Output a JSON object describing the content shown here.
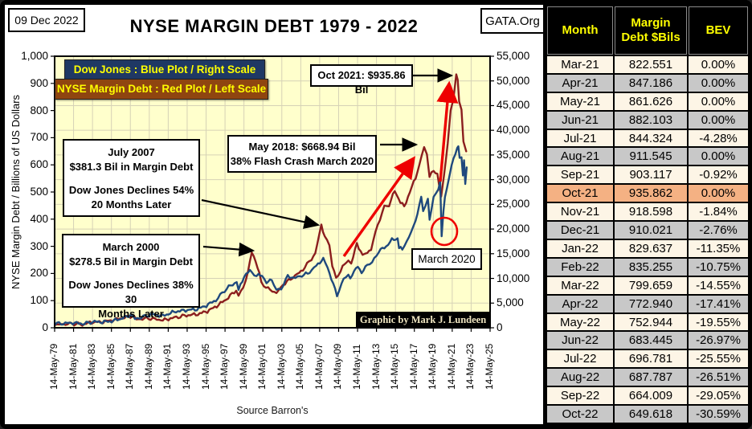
{
  "header": {
    "date": "09 Dec 2022",
    "org": "GATA.Org",
    "title": "NYSE MARGIN DEBT 1979 - 2022"
  },
  "footer": {
    "source": "Source Barron's",
    "credit": "Graphic by Mark J. Lundeen"
  },
  "legend": [
    {
      "label": "Dow Jones : Blue Plot / Right Scale",
      "bg": "#1F3864",
      "fg": "#FFFF00"
    },
    {
      "label": "NYSE Margin Debt : Red Plot / Left Scale",
      "bg": "#8F4510",
      "fg": "#FFFF00"
    }
  ],
  "annotations": {
    "oct2021": {
      "lines": [
        "Oct 2021: $935.86 Bil"
      ]
    },
    "may2018": {
      "lines": [
        "May 2018: $668.94 Bil",
        "38% Flash Crash March 2020"
      ]
    },
    "july2007": {
      "lines": [
        "July 2007",
        "$381.3 Bil in Margin Debt",
        "",
        "Dow Jones Declines 54%",
        "20 Months Later"
      ]
    },
    "march2000": {
      "lines": [
        "March 2000",
        "$278.5 Bil in Margin Debt",
        "",
        "Dow Jones Declines 38% 30",
        "Months Later"
      ]
    },
    "march2020": {
      "lines": [
        "March 2020"
      ]
    }
  },
  "chart_data": {
    "type": "line",
    "title": "NYSE MARGIN DEBT 1979 - 2022",
    "x_domain_years": [
      1979.37,
      2025.37
    ],
    "x_tick_labels": [
      "14-May-79",
      "14-May-81",
      "14-May-83",
      "14-May-85",
      "14-May-87",
      "14-May-89",
      "14-May-91",
      "14-May-93",
      "14-May-95",
      "14-May-97",
      "14-May-99",
      "14-May-01",
      "14-May-03",
      "14-May-05",
      "14-May-07",
      "14-May-09",
      "14-May-11",
      "14-May-13",
      "14-May-15",
      "14-May-17",
      "14-May-19",
      "14-May-21",
      "14-May-23",
      "14-May-25"
    ],
    "y_left": {
      "label": "NYSE Margin Debt  /  Billions of US Dollars",
      "range": [
        0,
        1000
      ],
      "tick_labels": [
        "1,000",
        "900",
        "800",
        "700",
        "600",
        "500",
        "400",
        "300",
        "200",
        "100",
        "0"
      ]
    },
    "y_right": {
      "label": "Dow Jones",
      "range": [
        0,
        55000
      ],
      "tick_labels": [
        "55,000",
        "50,000",
        "45,000",
        "40,000",
        "35,000",
        "30,000",
        "25,000",
        "20,000",
        "15,000",
        "10,000",
        "5,000",
        "0"
      ]
    },
    "grid": true,
    "plot_bg": "#FFFFCC",
    "grid_color": "#D6D2B6",
    "arrow_color": "#EE0000",
    "series": [
      {
        "name": "NYSE Margin Debt",
        "axis": "left",
        "color": "#8B1E1E",
        "points": [
          [
            1979.4,
            11
          ],
          [
            1980.3,
            13
          ],
          [
            1981.2,
            15
          ],
          [
            1982.3,
            12
          ],
          [
            1983.3,
            21
          ],
          [
            1984.3,
            21
          ],
          [
            1985.3,
            27
          ],
          [
            1986.3,
            34
          ],
          [
            1987.6,
            44
          ],
          [
            1988.0,
            31
          ],
          [
            1989.3,
            35
          ],
          [
            1990.8,
            28
          ],
          [
            1992.0,
            37
          ],
          [
            1993.3,
            46
          ],
          [
            1994.5,
            50
          ],
          [
            1995.5,
            61
          ],
          [
            1996.5,
            80
          ],
          [
            1997.5,
            105
          ],
          [
            1998.55,
            138
          ],
          [
            1998.8,
            114
          ],
          [
            1999.3,
            152
          ],
          [
            1999.8,
            205
          ],
          [
            2000.2,
            278.5
          ],
          [
            2000.6,
            248
          ],
          [
            2001.2,
            170
          ],
          [
            2001.7,
            148
          ],
          [
            2002.8,
            128
          ],
          [
            2003.5,
            158
          ],
          [
            2004.3,
            180
          ],
          [
            2005.0,
            196
          ],
          [
            2005.8,
            222
          ],
          [
            2006.5,
            255
          ],
          [
            2006.9,
            272
          ],
          [
            2007.55,
            381.3
          ],
          [
            2007.9,
            332
          ],
          [
            2008.4,
            308
          ],
          [
            2008.7,
            232
          ],
          [
            2009.1,
            180
          ],
          [
            2009.8,
            226
          ],
          [
            2010.4,
            246
          ],
          [
            2010.7,
            236
          ],
          [
            2011.3,
            310
          ],
          [
            2011.9,
            268
          ],
          [
            2012.4,
            278
          ],
          [
            2012.8,
            290
          ],
          [
            2013.5,
            380
          ],
          [
            2014.2,
            444
          ],
          [
            2014.7,
            452
          ],
          [
            2015.3,
            505
          ],
          [
            2015.9,
            462
          ],
          [
            2016.3,
            446
          ],
          [
            2016.9,
            500
          ],
          [
            2017.5,
            554
          ],
          [
            2017.9,
            598
          ],
          [
            2018.4,
            668.9
          ],
          [
            2018.7,
            644
          ],
          [
            2018.97,
            554
          ],
          [
            2019.4,
            580
          ],
          [
            2019.8,
            566
          ],
          [
            2020.2,
            479
          ],
          [
            2020.5,
            560
          ],
          [
            2020.9,
            682
          ],
          [
            2021.2,
            800
          ],
          [
            2021.5,
            846
          ],
          [
            2021.8,
            935.9
          ],
          [
            2021.95,
            912
          ],
          [
            2022.1,
            830
          ],
          [
            2022.35,
            799
          ],
          [
            2022.55,
            690
          ],
          [
            2022.85,
            649.6
          ]
        ]
      },
      {
        "name": "Dow Jones",
        "axis": "right",
        "color": "#1F497D",
        "points": [
          [
            1979.4,
            840
          ],
          [
            1980.5,
            900
          ],
          [
            1981.3,
            1000
          ],
          [
            1982.5,
            800
          ],
          [
            1983.4,
            1230
          ],
          [
            1984.4,
            1150
          ],
          [
            1985.4,
            1350
          ],
          [
            1986.4,
            1850
          ],
          [
            1987.6,
            2700
          ],
          [
            1987.85,
            1770
          ],
          [
            1988.5,
            2100
          ],
          [
            1989.6,
            2750
          ],
          [
            1990.8,
            2400
          ],
          [
            1992.0,
            3250
          ],
          [
            1993.4,
            3600
          ],
          [
            1994.4,
            3750
          ],
          [
            1995.4,
            4500
          ],
          [
            1996.4,
            5600
          ],
          [
            1997.55,
            8000
          ],
          [
            1998.6,
            9300
          ],
          [
            1998.8,
            7600
          ],
          [
            1999.4,
            10500
          ],
          [
            2000.0,
            11500
          ],
          [
            2000.7,
            10500
          ],
          [
            2001.3,
            10700
          ],
          [
            2001.75,
            8900
          ],
          [
            2002.3,
            10000
          ],
          [
            2002.8,
            7400
          ],
          [
            2003.3,
            8000
          ],
          [
            2004.0,
            10400
          ],
          [
            2004.8,
            10100
          ],
          [
            2005.5,
            10550
          ],
          [
            2006.3,
            11200
          ],
          [
            2007.0,
            12600
          ],
          [
            2007.75,
            13950
          ],
          [
            2008.2,
            12300
          ],
          [
            2008.8,
            8800
          ],
          [
            2009.2,
            6600
          ],
          [
            2009.9,
            9800
          ],
          [
            2010.4,
            11000
          ],
          [
            2010.6,
            9900
          ],
          [
            2011.4,
            12700
          ],
          [
            2011.8,
            10900
          ],
          [
            2012.4,
            13000
          ],
          [
            2012.9,
            13100
          ],
          [
            2013.6,
            15500
          ],
          [
            2014.4,
            16500
          ],
          [
            2015.0,
            17800
          ],
          [
            2015.6,
            18100
          ],
          [
            2015.75,
            16200
          ],
          [
            2016.1,
            15900
          ],
          [
            2016.8,
            18300
          ],
          [
            2017.5,
            21700
          ],
          [
            2018.1,
            26300
          ],
          [
            2018.3,
            23900
          ],
          [
            2018.8,
            25900
          ],
          [
            2018.98,
            21800
          ],
          [
            2019.4,
            26500
          ],
          [
            2019.9,
            28000
          ],
          [
            2020.1,
            29400
          ],
          [
            2020.25,
            18600
          ],
          [
            2020.45,
            24000
          ],
          [
            2020.6,
            26500
          ],
          [
            2020.8,
            28300
          ],
          [
            2021.1,
            31000
          ],
          [
            2021.5,
            34500
          ],
          [
            2021.9,
            36100
          ],
          [
            2022.02,
            36700
          ],
          [
            2022.15,
            34300
          ],
          [
            2022.35,
            34800
          ],
          [
            2022.5,
            30900
          ],
          [
            2022.62,
            34100
          ],
          [
            2022.75,
            29200
          ],
          [
            2022.9,
            32500
          ]
        ]
      }
    ]
  },
  "table": {
    "columns": [
      [
        "Month"
      ],
      [
        "Margin",
        "Debt $Bils"
      ],
      [
        "BEV"
      ]
    ],
    "highlight_month": "Oct-21",
    "highlight_color": "#F4B183",
    "rows": [
      [
        "Mar-21",
        "822.551",
        "0.00%"
      ],
      [
        "Apr-21",
        "847.186",
        "0.00%"
      ],
      [
        "May-21",
        "861.626",
        "0.00%"
      ],
      [
        "Jun-21",
        "882.103",
        "0.00%"
      ],
      [
        "Jul-21",
        "844.324",
        "-4.28%"
      ],
      [
        "Aug-21",
        "911.545",
        "0.00%"
      ],
      [
        "Sep-21",
        "903.117",
        "-0.92%"
      ],
      [
        "Oct-21",
        "935.862",
        "0.00%"
      ],
      [
        "Nov-21",
        "918.598",
        "-1.84%"
      ],
      [
        "Dec-21",
        "910.021",
        "-2.76%"
      ],
      [
        "Jan-22",
        "829.637",
        "-11.35%"
      ],
      [
        "Feb-22",
        "835.255",
        "-10.75%"
      ],
      [
        "Mar-22",
        "799.659",
        "-14.55%"
      ],
      [
        "Apr-22",
        "772.940",
        "-17.41%"
      ],
      [
        "May-22",
        "752.944",
        "-19.55%"
      ],
      [
        "Jun-22",
        "683.445",
        "-26.97%"
      ],
      [
        "Jul-22",
        "696.781",
        "-25.55%"
      ],
      [
        "Aug-22",
        "687.787",
        "-26.51%"
      ],
      [
        "Sep-22",
        "664.009",
        "-29.05%"
      ],
      [
        "Oct-22",
        "649.618",
        "-30.59%"
      ]
    ]
  }
}
